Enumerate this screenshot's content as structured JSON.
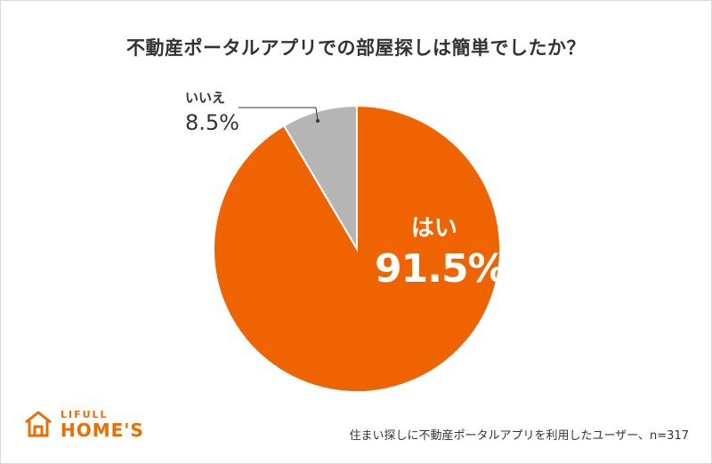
{
  "title": "不動産ポータルアプリでの部屋探しは簡単でしたか？",
  "chart_data": {
    "type": "pie",
    "title": "不動産ポータルアプリでの部屋探しは簡単でしたか？",
    "slices": [
      {
        "label": "はい",
        "value": 91.5,
        "display": "91.5%",
        "color": "#ef6300"
      },
      {
        "label": "いいえ",
        "value": 8.5,
        "display": "8.5%",
        "color": "#b5b5b5"
      }
    ],
    "start_angle_deg": 0,
    "direction": "clockwise"
  },
  "footnote": "住まい探しに不動産ポータルアプリを利用したユーザー、n=317",
  "logo": {
    "line1": "LIFULL",
    "line2": "HOME'S",
    "color": "#ef6c00"
  }
}
